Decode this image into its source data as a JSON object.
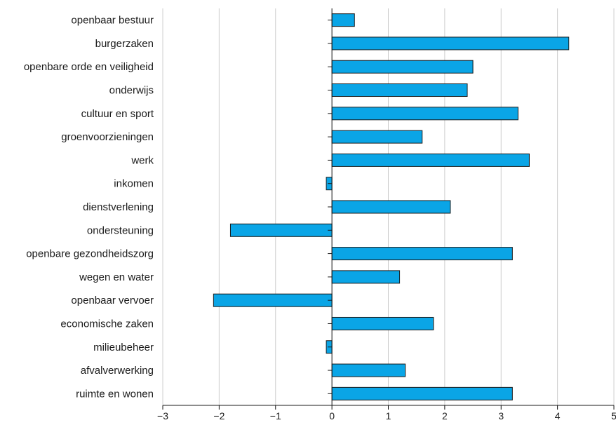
{
  "chart_data": {
    "type": "bar",
    "orientation": "horizontal",
    "title": "",
    "xlabel": "",
    "ylabel": "",
    "xlim": [
      -3,
      5
    ],
    "xticks": [
      -3,
      -2,
      -1,
      0,
      1,
      2,
      3,
      4,
      5
    ],
    "xtick_labels": [
      "−3",
      "−2",
      "−1",
      "0",
      "1",
      "2",
      "3",
      "4",
      "5"
    ],
    "grid": "vertical",
    "legend": "none",
    "bar_color": "#0aa5e6",
    "bar_edge_color": "#1a1a1a",
    "grid_color": "#cfcfcf",
    "categories": [
      "openbaar bestuur",
      "burgerzaken",
      "openbare orde en veiligheid",
      "onderwijs",
      "cultuur en sport",
      "groenvoorzieningen",
      "werk",
      "inkomen",
      "dienstverlening",
      "ondersteuning",
      "openbare gezondheidszorg",
      "wegen en water",
      "openbaar vervoer",
      "economische zaken",
      "milieubeheer",
      "afvalverwerking",
      "ruimte en wonen"
    ],
    "values": [
      0.4,
      4.2,
      2.5,
      2.4,
      3.3,
      1.6,
      3.5,
      -0.1,
      2.1,
      -1.8,
      3.2,
      1.2,
      -2.1,
      1.8,
      -0.1,
      1.3,
      3.2
    ]
  }
}
